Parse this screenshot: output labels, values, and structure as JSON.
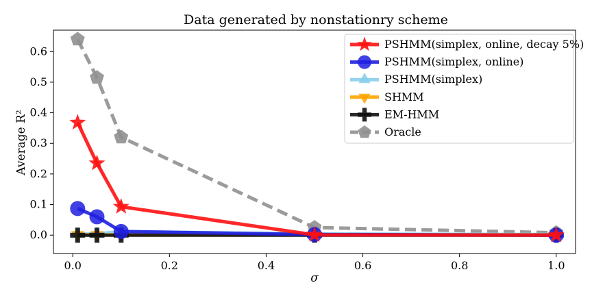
{
  "chart_data": {
    "type": "line",
    "title": "Data generated by nonstationry scheme",
    "xlabel": "σ",
    "ylabel": "Average R²",
    "xlim": [
      -0.04,
      1.04
    ],
    "ylim": [
      -0.06,
      0.67
    ],
    "xticks": [
      0.0,
      0.2,
      0.4,
      0.6,
      0.8,
      1.0
    ],
    "xtick_labels": [
      "0.0",
      "0.2",
      "0.4",
      "0.6",
      "0.8",
      "1.0"
    ],
    "yticks": [
      0.0,
      0.1,
      0.2,
      0.3,
      0.4,
      0.5,
      0.6
    ],
    "ytick_labels": [
      "0.0",
      "0.1",
      "0.2",
      "0.3",
      "0.4",
      "0.5",
      "0.6"
    ],
    "grid": false,
    "legend_position": "top-right",
    "x": [
      0.01,
      0.05,
      0.1,
      0.5,
      1.0
    ],
    "series": [
      {
        "name": "Oracle",
        "values": [
          0.64,
          0.515,
          0.32,
          0.025,
          0.008
        ],
        "color": "#909090",
        "marker": "pentagon",
        "linestyle": "dashed"
      },
      {
        "name": "PSHMM(simplex)",
        "values": [
          0.003,
          0.004,
          0.012,
          0.004,
          0.002
        ],
        "color": "#87CEEB",
        "marker": "triangle-up",
        "linestyle": "solid"
      },
      {
        "name": "SHMM",
        "values": [
          0.001,
          0.001,
          0.001,
          0.001,
          0.001
        ],
        "color": "#FFA500",
        "marker": "triangle-down",
        "linestyle": "solid"
      },
      {
        "name": "EM-HMM",
        "values": [
          0.0,
          0.0,
          0.0,
          0.0,
          0.0
        ],
        "color": "#111111",
        "marker": "plus",
        "linestyle": "solid"
      },
      {
        "name": "PSHMM(simplex, online)",
        "values": [
          0.087,
          0.06,
          0.012,
          0.002,
          0.0
        ],
        "color": "#1f1fe0",
        "marker": "circle",
        "linestyle": "solid"
      },
      {
        "name": "PSHMM(simplex, online, decay 5%)",
        "values": [
          0.368,
          0.235,
          0.093,
          0.001,
          0.0
        ],
        "color": "#ff1111",
        "marker": "star",
        "linestyle": "solid"
      }
    ],
    "legend_order": [
      "PSHMM(simplex, online, decay 5%)",
      "PSHMM(simplex, online)",
      "PSHMM(simplex)",
      "SHMM",
      "EM-HMM",
      "Oracle"
    ]
  }
}
